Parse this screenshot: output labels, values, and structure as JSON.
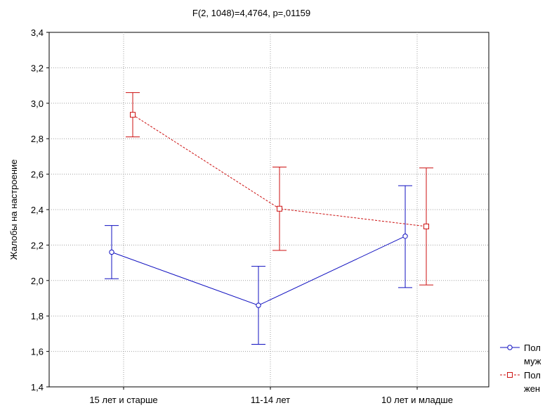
{
  "chart_data": {
    "type": "line",
    "title": "F(2, 1048)=4,4764, p=,01159",
    "ylabel": "Жалобы на настроение",
    "xlabel": "",
    "ylim": [
      1.4,
      3.4
    ],
    "yticks": [
      "1,4",
      "1,6",
      "1,8",
      "2,0",
      "2,2",
      "2,4",
      "2,6",
      "2,8",
      "3,0",
      "3,2",
      "3,4"
    ],
    "ytick_values": [
      1.4,
      1.6,
      1.8,
      2.0,
      2.2,
      2.4,
      2.6,
      2.8,
      3.0,
      3.2,
      3.4
    ],
    "categories": [
      "15 лет и старше",
      "11-14 лет",
      "10 лет и младше"
    ],
    "grid": true,
    "legend_position": "bottom-right",
    "series": [
      {
        "legend_title": "Пол",
        "legend_label": "муж",
        "color": "#1010c0",
        "marker": "circle",
        "line_style": "solid",
        "values": [
          2.16,
          1.86,
          2.25
        ],
        "lower": [
          2.01,
          1.64,
          1.96
        ],
        "upper": [
          2.31,
          2.08,
          2.535
        ]
      },
      {
        "legend_title": "Пол",
        "legend_label": "жен",
        "color": "#cc1010",
        "marker": "square",
        "line_style": "dashed",
        "values": [
          2.935,
          2.405,
          2.305
        ],
        "lower": [
          2.81,
          2.17,
          1.975
        ],
        "upper": [
          3.06,
          2.64,
          2.635
        ]
      }
    ]
  }
}
